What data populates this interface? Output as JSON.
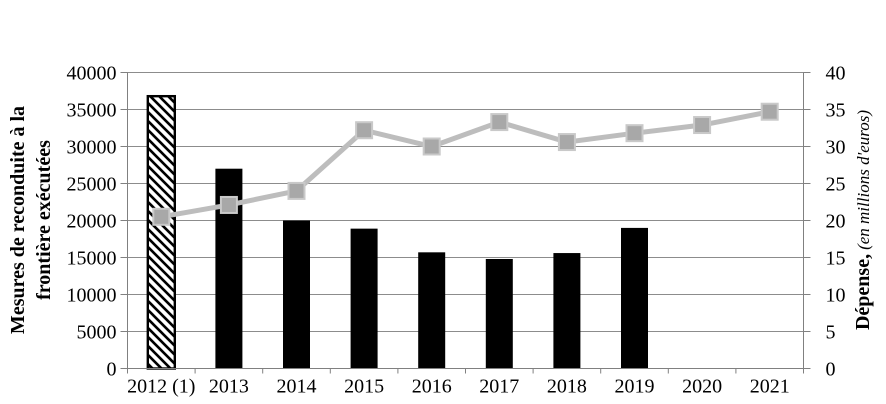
{
  "chart_data": {
    "type": "combo-bar-line",
    "title": "",
    "categories": [
      "2012 (1)",
      "2013",
      "2014",
      "2015",
      "2016",
      "2017",
      "2018",
      "2019",
      "2020",
      "2021"
    ],
    "series": [
      {
        "name": "Mesures de reconduite à la frontière exécutées",
        "type": "bar",
        "axis": "left",
        "values": [
          36800,
          27000,
          20000,
          18900,
          15700,
          14800,
          15600,
          19000,
          null,
          null
        ],
        "bar_color": "#000000",
        "first_bar_style": "white fill with black diagonal hatch and black border"
      },
      {
        "name": "Dépense (en millions d'euros)",
        "type": "line",
        "axis": "right",
        "values": [
          20.5,
          22.1,
          24.0,
          32.2,
          30.0,
          33.3,
          30.6,
          31.8,
          32.9,
          34.7
        ],
        "line_color": "#bdbdbd",
        "marker": "square",
        "marker_color": "#a8a8a8",
        "marker_border_color": "#c9c9c9"
      }
    ],
    "left_axis": {
      "title": "Mesures de reconduite à la frontière exécutées",
      "title_lines": [
        "Mesures de reconduite à la",
        "frontière exécutées"
      ],
      "min": 0,
      "max": 40000,
      "step": 5000,
      "tick_labels": [
        "0",
        "5000",
        "10000",
        "15000",
        "20000",
        "25000",
        "30000",
        "35000",
        "40000"
      ]
    },
    "right_axis": {
      "title": "Dépense, (en millions d'euros)",
      "title_bold": "Dépense,",
      "title_italic": "(en millions d'euros)",
      "min": 0,
      "max": 40,
      "step": 5,
      "tick_labels": [
        "0",
        "5",
        "10",
        "15",
        "20",
        "25",
        "30",
        "35",
        "40"
      ]
    },
    "grid": {
      "show": true,
      "color": "#8c8c8c"
    },
    "axis_color": "#808080",
    "background": "#ffffff",
    "legend": false
  }
}
